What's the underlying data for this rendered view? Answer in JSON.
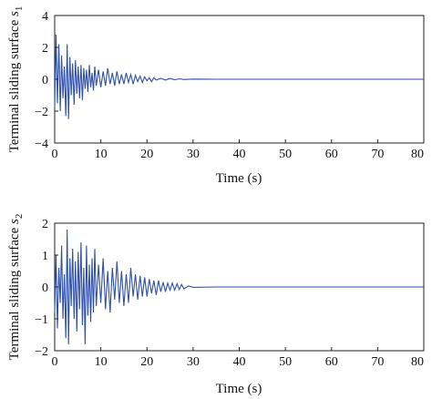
{
  "chart_data": [
    {
      "type": "line",
      "title": "",
      "xlabel": "Time (s)",
      "ylabel": "Terminal sliding surface",
      "ylabel_sub": "1",
      "ylabel_var": "s",
      "xlim": [
        0,
        80
      ],
      "ylim": [
        -4,
        4
      ],
      "xticks": [
        0,
        10,
        20,
        30,
        40,
        50,
        60,
        70,
        80
      ],
      "yticks": [
        -4,
        -2,
        0,
        2,
        4
      ],
      "grid": false,
      "line_color": "#2f4fa8",
      "series": [
        {
          "x": [
            0,
            0.3,
            0.6,
            0.9,
            1.2,
            1.5,
            1.8,
            2.1,
            2.4,
            2.7,
            3.0,
            3.3,
            3.6,
            3.9,
            4.2,
            4.5,
            4.8,
            5.1,
            5.4,
            5.7,
            6.0,
            6.3,
            6.6,
            6.9,
            7.2,
            7.5,
            7.8,
            8.1,
            8.4,
            8.7,
            9.0,
            9.5,
            10,
            10.5,
            11,
            11.5,
            12,
            12.5,
            13,
            13.5,
            14,
            14.5,
            15,
            15.5,
            16,
            16.5,
            17,
            17.5,
            18,
            18.5,
            19,
            19.5,
            20,
            20.5,
            21,
            21.5,
            22,
            23,
            24,
            25,
            26,
            27,
            28,
            30,
            35,
            40,
            45,
            50,
            55,
            60,
            65,
            70,
            75,
            80
          ],
          "values": [
            -1.8,
            2.8,
            -1.5,
            2.2,
            -2.0,
            1.5,
            -1.2,
            0.8,
            -2.3,
            2.2,
            -2.5,
            1.4,
            -1.0,
            1.0,
            -1.6,
            1.2,
            -0.9,
            0.8,
            -1.2,
            0.9,
            -1.3,
            0.7,
            -0.6,
            0.6,
            -0.8,
            0.9,
            -0.5,
            0.4,
            -0.7,
            0.8,
            -0.4,
            0.6,
            -0.5,
            0.5,
            -0.4,
            0.7,
            -0.3,
            0.4,
            -0.4,
            0.5,
            -0.3,
            0.3,
            -0.3,
            0.4,
            -0.2,
            0.3,
            -0.3,
            0.25,
            -0.15,
            0.2,
            -0.2,
            0.15,
            -0.1,
            0.1,
            -0.15,
            0.1,
            -0.05,
            0.06,
            -0.05,
            0.05,
            -0.03,
            0.03,
            -0.02,
            0.01,
            0,
            0,
            0,
            0,
            0,
            0,
            0,
            0,
            0,
            0
          ]
        }
      ]
    },
    {
      "type": "line",
      "title": "",
      "xlabel": "Time (s)",
      "ylabel": "Terminal sliding surface",
      "ylabel_sub": "2",
      "ylabel_var": "s",
      "xlim": [
        0,
        80
      ],
      "ylim": [
        -2,
        2
      ],
      "xticks": [
        0,
        10,
        20,
        30,
        40,
        50,
        60,
        70,
        80
      ],
      "yticks": [
        -2,
        -1,
        0,
        1,
        2
      ],
      "grid": false,
      "line_color": "#2f4fa8",
      "series": [
        {
          "x": [
            0,
            0.3,
            0.6,
            0.9,
            1.2,
            1.5,
            1.8,
            2.1,
            2.4,
            2.7,
            3.0,
            3.3,
            3.6,
            3.9,
            4.2,
            4.5,
            4.8,
            5.1,
            5.4,
            5.7,
            6.0,
            6.3,
            6.6,
            6.9,
            7.2,
            7.5,
            7.8,
            8.1,
            8.4,
            8.7,
            9.0,
            9.5,
            10,
            10.5,
            11,
            11.5,
            12,
            12.5,
            13,
            13.5,
            14,
            14.5,
            15,
            15.5,
            16,
            16.5,
            17,
            17.5,
            18,
            18.5,
            19,
            19.5,
            20,
            20.5,
            21,
            21.5,
            22,
            22.5,
            23,
            23.5,
            24,
            24.5,
            25,
            25.5,
            26,
            26.5,
            27,
            27.5,
            28,
            29,
            30,
            35,
            40,
            45,
            50,
            55,
            60,
            65,
            70,
            75,
            80
          ],
          "values": [
            -0.8,
            1.0,
            -1.3,
            0.6,
            -0.5,
            1.3,
            -1.0,
            0.4,
            -1.6,
            1.8,
            -1.8,
            0.9,
            -0.6,
            1.2,
            -1.0,
            0.8,
            -1.4,
            1.1,
            -0.7,
            1.4,
            -1.2,
            0.6,
            -1.8,
            1.3,
            -0.9,
            0.7,
            -1.1,
            0.9,
            -0.8,
            1.2,
            -0.6,
            0.7,
            -0.5,
            0.9,
            -0.7,
            0.5,
            -0.8,
            0.6,
            -0.4,
            0.8,
            -0.5,
            0.5,
            -0.6,
            0.4,
            -0.5,
            0.6,
            -0.3,
            0.4,
            -0.4,
            0.35,
            -0.3,
            0.3,
            -0.3,
            0.25,
            -0.2,
            0.2,
            -0.25,
            0.2,
            -0.15,
            0.15,
            -0.15,
            0.12,
            -0.1,
            0.12,
            -0.1,
            0.1,
            -0.08,
            0.08,
            -0.06,
            0.03,
            -0.01,
            0,
            0,
            0,
            0,
            0,
            0,
            0,
            0,
            0,
            0
          ]
        }
      ]
    }
  ]
}
